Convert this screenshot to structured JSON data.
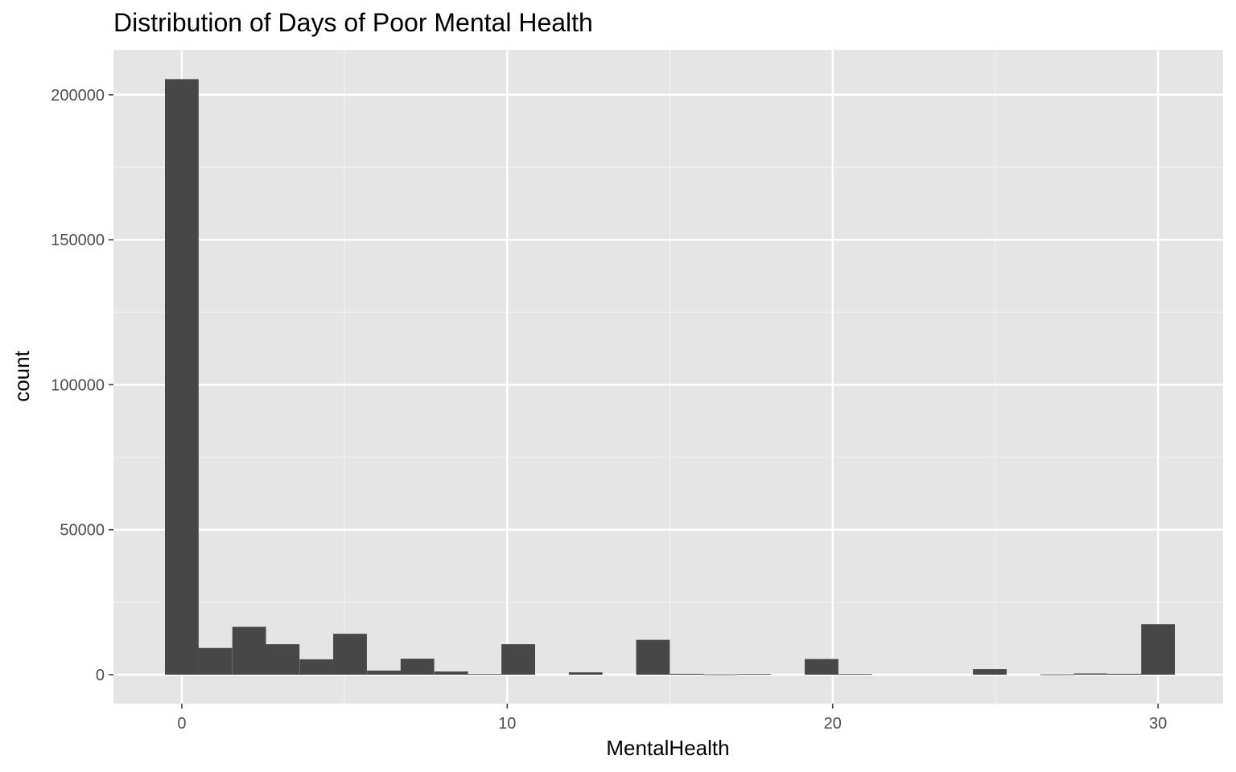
{
  "chart_data": {
    "type": "bar",
    "title": "Distribution of Days of Poor Mental Health",
    "xlabel": "MentalHealth",
    "ylabel": "count",
    "xlim": [
      -2.1,
      32.0
    ],
    "ylim": [
      -10000,
      215500
    ],
    "x_ticks": [
      0,
      10,
      20,
      30
    ],
    "y_ticks": [
      0,
      50000,
      100000,
      150000,
      200000
    ],
    "y_tick_labels": [
      "0",
      "50000",
      "100000",
      "150000",
      "200000"
    ],
    "grid": true,
    "bin_width": 1.0345,
    "bins": [
      {
        "x": 0.0,
        "count": 205400
      },
      {
        "x": 1.03,
        "count": 9200
      },
      {
        "x": 2.07,
        "count": 16500
      },
      {
        "x": 3.1,
        "count": 10500
      },
      {
        "x": 4.14,
        "count": 5300
      },
      {
        "x": 5.17,
        "count": 14100
      },
      {
        "x": 6.21,
        "count": 1400
      },
      {
        "x": 7.24,
        "count": 5500
      },
      {
        "x": 8.28,
        "count": 1100
      },
      {
        "x": 9.31,
        "count": 200
      },
      {
        "x": 10.34,
        "count": 10500
      },
      {
        "x": 11.38,
        "count": 0
      },
      {
        "x": 12.41,
        "count": 800
      },
      {
        "x": 13.45,
        "count": 0
      },
      {
        "x": 14.48,
        "count": 12000
      },
      {
        "x": 15.52,
        "count": 300
      },
      {
        "x": 16.55,
        "count": 100
      },
      {
        "x": 17.59,
        "count": 200
      },
      {
        "x": 18.62,
        "count": 0
      },
      {
        "x": 19.66,
        "count": 5400
      },
      {
        "x": 20.69,
        "count": 200
      },
      {
        "x": 21.72,
        "count": 0
      },
      {
        "x": 22.76,
        "count": 0
      },
      {
        "x": 23.79,
        "count": 0
      },
      {
        "x": 24.83,
        "count": 1900
      },
      {
        "x": 25.86,
        "count": 0
      },
      {
        "x": 26.9,
        "count": 100
      },
      {
        "x": 27.93,
        "count": 400
      },
      {
        "x": 28.97,
        "count": 300
      },
      {
        "x": 30.0,
        "count": 17400
      }
    ],
    "colors": {
      "panel": "#e5e5e5",
      "grid_major": "#ffffff",
      "grid_minor": "#f2f2f2",
      "bar": "#474747",
      "tick": "#333333"
    }
  }
}
